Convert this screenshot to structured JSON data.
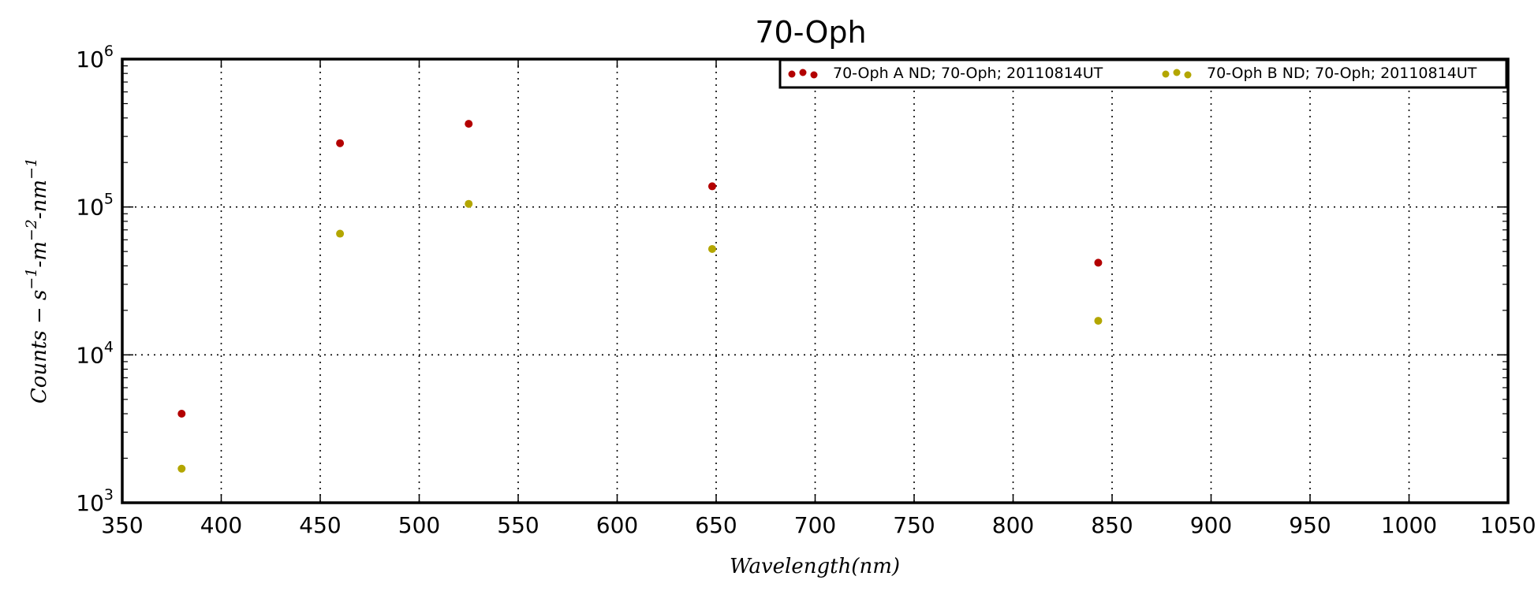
{
  "chart_data": {
    "type": "scatter",
    "title": "70-Oph",
    "xlabel": "Wavelength(nm)",
    "ylabel": "Counts - s-1-m-2-nm-1",
    "xlim": [
      350,
      1050
    ],
    "ylim": [
      1000,
      1000000
    ],
    "yscale": "log",
    "grid": true,
    "legend_position": "top-right",
    "x_ticks": [
      "350",
      "400",
      "450",
      "500",
      "550",
      "600",
      "650",
      "700",
      "750",
      "800",
      "850",
      "900",
      "950",
      "1000",
      "1050"
    ],
    "y_ticks": [
      {
        "base": "10",
        "exp": "3",
        "value": 1000
      },
      {
        "base": "10",
        "exp": "4",
        "value": 10000
      },
      {
        "base": "10",
        "exp": "5",
        "value": 100000
      },
      {
        "base": "10",
        "exp": "6",
        "value": 1000000
      }
    ],
    "series": [
      {
        "name": "70-Oph A ND; 70-Oph; 20110814UT",
        "color": "#b30000",
        "points": [
          {
            "x": 380,
            "y": 4000
          },
          {
            "x": 460,
            "y": 270000
          },
          {
            "x": 525,
            "y": 365000
          },
          {
            "x": 648,
            "y": 138000
          },
          {
            "x": 843,
            "y": 42000
          }
        ]
      },
      {
        "name": "70-Oph B ND; 70-Oph; 20110814UT",
        "color": "#b3a600",
        "points": [
          {
            "x": 380,
            "y": 1700
          },
          {
            "x": 460,
            "y": 66000
          },
          {
            "x": 525,
            "y": 105000
          },
          {
            "x": 648,
            "y": 52000
          },
          {
            "x": 843,
            "y": 17000
          }
        ]
      }
    ]
  }
}
